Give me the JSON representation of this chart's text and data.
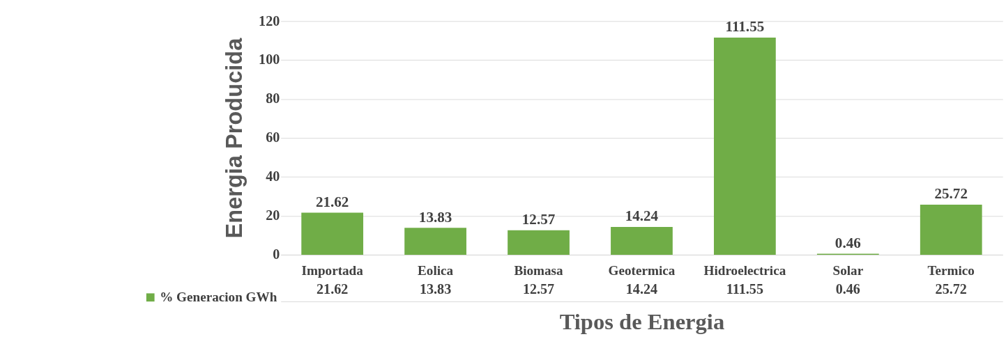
{
  "chart_data": {
    "type": "bar",
    "xlabel": "Tipos de Energia",
    "ylabel": "Energia Producida",
    "categories": [
      "Importada",
      "Eolica",
      "Biomasa",
      "Geotermica",
      "Hidroelectrica",
      "Solar",
      "Termico"
    ],
    "series": [
      {
        "name": "% Generacion GWh",
        "color": "#70ad47",
        "values": [
          21.62,
          13.83,
          12.57,
          14.24,
          111.55,
          0.46,
          25.72
        ]
      }
    ],
    "annotations": [
      "21.62",
      "13.83",
      "12.57",
      "14.24",
      "111.55",
      "0.46",
      "25.72"
    ],
    "ylim": [
      0,
      120
    ],
    "yticks": [
      0,
      20,
      40,
      60,
      80,
      100,
      120
    ],
    "grid": "y",
    "legend": "bottom",
    "data_labels": true
  }
}
